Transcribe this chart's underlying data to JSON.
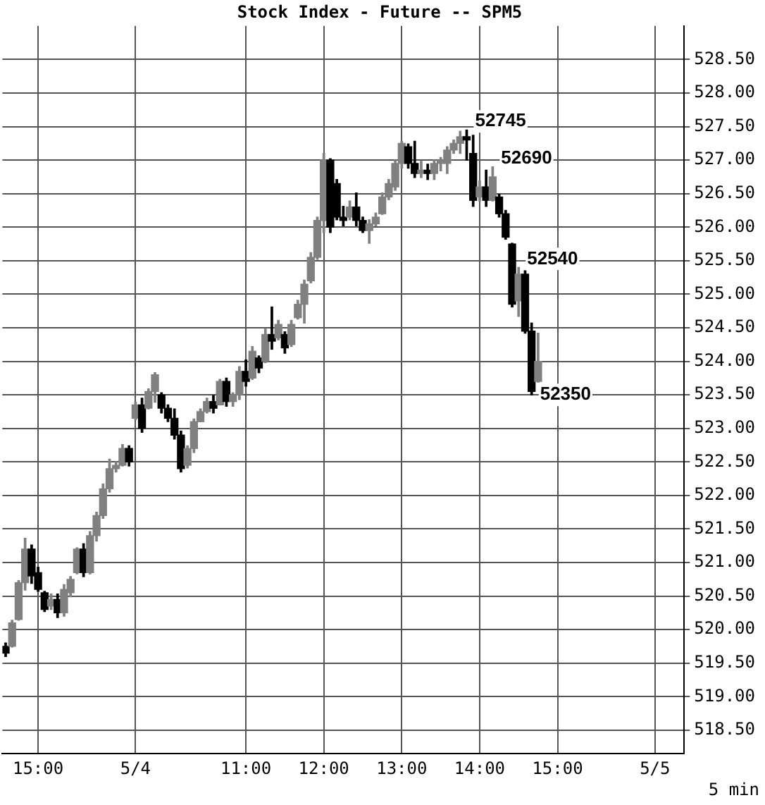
{
  "chart_data": {
    "type": "candlestick",
    "title": "Stock Index - Future -- SPM5",
    "categories": [
      null,
      null,
      null,
      null,
      null,
      "15:00",
      null,
      null,
      null,
      null,
      null,
      null,
      null,
      null,
      null,
      null,
      null,
      null,
      null,
      null,
      "5/4",
      null,
      null,
      null,
      null,
      null,
      null,
      null,
      null,
      null,
      null,
      null,
      null,
      null,
      null,
      null,
      null,
      "11:00",
      null,
      null,
      null,
      null,
      null,
      null,
      null,
      null,
      null,
      null,
      null,
      "12:00",
      null,
      null,
      null,
      null,
      null,
      null,
      null,
      null,
      null,
      null,
      null,
      "13:00",
      null,
      null,
      null,
      null,
      null,
      null,
      null,
      null,
      null,
      null,
      null,
      "14:00",
      null,
      null,
      null,
      null,
      null,
      null,
      null,
      null,
      null,
      null,
      null,
      "15:00",
      null,
      null,
      null,
      null,
      null,
      null,
      null,
      null,
      null,
      null,
      null,
      null,
      null,
      null,
      "5/5",
      null,
      null,
      null,
      null
    ],
    "ohlc": [
      [
        519.75,
        519.8,
        519.6,
        519.65
      ],
      [
        519.75,
        520.14,
        519.74,
        520.1
      ],
      [
        520.15,
        520.73,
        520.14,
        520.7
      ],
      [
        520.7,
        521.36,
        520.59,
        521.2
      ],
      [
        521.2,
        521.26,
        520.69,
        520.8
      ],
      [
        520.85,
        520.93,
        520.57,
        520.6
      ],
      [
        520.55,
        520.57,
        520.27,
        520.3
      ],
      [
        520.35,
        520.53,
        520.3,
        520.45
      ],
      [
        520.45,
        520.53,
        520.18,
        520.25
      ],
      [
        520.25,
        520.67,
        520.2,
        520.6
      ],
      [
        520.55,
        520.79,
        520.49,
        520.75
      ],
      [
        520.85,
        521.22,
        520.83,
        521.2
      ],
      [
        521.2,
        521.28,
        520.79,
        520.85
      ],
      [
        520.85,
        521.46,
        520.83,
        521.4
      ],
      [
        521.4,
        521.75,
        521.32,
        521.7
      ],
      [
        521.7,
        522.17,
        521.66,
        522.1
      ],
      [
        522.1,
        522.54,
        522.05,
        522.4
      ],
      [
        522.4,
        522.5,
        522.35,
        522.45
      ],
      [
        522.45,
        522.76,
        522.44,
        522.7
      ],
      [
        522.7,
        522.74,
        522.44,
        522.5
      ],
      [
        523.15,
        523.39,
        523.13,
        523.35
      ],
      [
        523.35,
        523.45,
        522.94,
        523.0
      ],
      [
        523.3,
        523.59,
        523.29,
        523.55
      ],
      [
        523.55,
        523.83,
        523.39,
        523.8
      ],
      [
        523.5,
        523.53,
        523.23,
        523.3
      ],
      [
        523.3,
        523.35,
        523.1,
        523.15
      ],
      [
        523.15,
        523.29,
        522.84,
        522.9
      ],
      [
        522.9,
        522.96,
        522.35,
        522.4
      ],
      [
        522.45,
        522.74,
        522.41,
        522.7
      ],
      [
        522.7,
        523.14,
        522.64,
        523.1
      ],
      [
        523.1,
        523.29,
        523.1,
        523.25
      ],
      [
        523.25,
        523.45,
        523.23,
        523.4
      ],
      [
        523.4,
        523.49,
        523.23,
        523.3
      ],
      [
        523.35,
        523.73,
        523.35,
        523.7
      ],
      [
        523.7,
        523.75,
        523.33,
        523.4
      ],
      [
        523.4,
        523.53,
        523.33,
        523.5
      ],
      [
        523.5,
        523.92,
        523.43,
        523.85
      ],
      [
        523.85,
        524.02,
        523.63,
        523.7
      ],
      [
        523.75,
        524.22,
        523.73,
        524.15
      ],
      [
        524.05,
        524.08,
        523.83,
        523.9
      ],
      [
        524.0,
        524.48,
        523.98,
        524.4
      ],
      [
        524.4,
        524.81,
        524.18,
        524.3
      ],
      [
        524.35,
        524.61,
        524.32,
        524.55
      ],
      [
        524.4,
        524.44,
        524.12,
        524.2
      ],
      [
        524.25,
        524.61,
        524.22,
        524.55
      ],
      [
        524.65,
        524.91,
        524.63,
        524.85
      ],
      [
        524.85,
        525.21,
        524.57,
        525.15
      ],
      [
        525.2,
        525.62,
        525.17,
        525.55
      ],
      [
        525.55,
        526.15,
        525.52,
        526.1
      ],
      [
        526.1,
        527.1,
        525.92,
        527.0
      ],
      [
        527.0,
        527.02,
        525.92,
        526.0
      ],
      [
        526.65,
        526.71,
        526.11,
        526.15
      ],
      [
        526.15,
        526.31,
        526.02,
        526.1
      ],
      [
        526.15,
        526.39,
        526.11,
        526.3
      ],
      [
        526.3,
        526.51,
        526.02,
        526.1
      ],
      [
        526.1,
        526.15,
        525.92,
        525.95
      ],
      [
        525.95,
        526.11,
        525.76,
        526.05
      ],
      [
        526.05,
        526.21,
        526.02,
        526.15
      ],
      [
        526.2,
        526.51,
        526.19,
        526.45
      ],
      [
        526.45,
        526.71,
        526.41,
        526.65
      ],
      [
        526.6,
        527.0,
        526.55,
        526.95
      ],
      [
        526.95,
        527.28,
        526.88,
        527.25
      ],
      [
        527.2,
        527.24,
        526.88,
        526.95
      ],
      [
        526.95,
        527.28,
        526.74,
        526.8
      ],
      [
        526.8,
        526.98,
        526.74,
        526.85
      ],
      [
        526.85,
        526.94,
        526.71,
        526.8
      ],
      [
        526.8,
        527.0,
        526.71,
        526.95
      ],
      [
        526.95,
        527.04,
        526.84,
        527.0
      ],
      [
        526.95,
        527.2,
        526.8,
        527.15
      ],
      [
        527.15,
        527.3,
        527.1,
        527.25
      ],
      [
        527.25,
        527.43,
        527.1,
        527.35
      ],
      [
        527.35,
        527.45,
        527.0,
        527.3
      ],
      [
        527.1,
        527.37,
        526.31,
        526.4
      ],
      [
        526.45,
        526.69,
        526.39,
        526.6
      ],
      [
        526.6,
        526.85,
        526.31,
        526.4
      ],
      [
        526.4,
        526.9,
        526.39,
        526.75
      ],
      [
        526.45,
        526.49,
        526.15,
        526.2
      ],
      [
        526.2,
        526.25,
        525.82,
        525.85
      ],
      [
        525.75,
        525.76,
        524.81,
        524.85
      ],
      [
        524.9,
        525.4,
        524.67,
        525.3
      ],
      [
        525.3,
        525.35,
        524.42,
        524.45
      ],
      [
        524.45,
        524.57,
        523.5,
        523.55
      ],
      [
        523.7,
        524.42,
        523.69,
        524.0
      ],
      null,
      null,
      null,
      null,
      null,
      null,
      null,
      null,
      null,
      null,
      null,
      null,
      null,
      null,
      null,
      null,
      null,
      null,
      null,
      null,
      null,
      null
    ],
    "colors": [
      "#000000",
      "#808080",
      "#808080",
      "#808080",
      "#000000",
      "#000000",
      "#000000",
      "#808080",
      "#000000",
      "#808080",
      "#808080",
      "#808080",
      "#000000",
      "#808080",
      "#808080",
      "#808080",
      "#808080",
      "#808080",
      "#808080",
      "#000000",
      "#808080",
      "#000000",
      "#808080",
      "#808080",
      "#000000",
      "#000000",
      "#000000",
      "#000000",
      "#808080",
      "#808080",
      "#808080",
      "#808080",
      "#000000",
      "#808080",
      "#000000",
      "#808080",
      "#808080",
      "#000000",
      "#808080",
      "#000000",
      "#808080",
      "#000000",
      "#808080",
      "#000000",
      "#808080",
      "#808080",
      "#808080",
      "#808080",
      "#808080",
      "#808080",
      "#000000",
      "#000000",
      "#000000",
      "#808080",
      "#000000",
      "#000000",
      "#808080",
      "#808080",
      "#808080",
      "#808080",
      "#808080",
      "#808080",
      "#000000",
      "#000000",
      "#808080",
      "#000000",
      "#808080",
      "#808080",
      "#808080",
      "#808080",
      "#808080",
      "#000000",
      "#000000",
      "#808080",
      "#000000",
      "#808080",
      "#000000",
      "#000000",
      "#000000",
      "#808080",
      "#000000",
      "#000000",
      "#808080",
      null,
      null,
      null,
      null,
      null,
      null,
      null,
      null,
      null,
      null,
      null,
      null,
      null,
      null,
      null,
      null,
      null,
      null,
      null,
      null,
      null,
      null
    ],
    "ylim": [
      518.15,
      529.0
    ],
    "yticks": [
      {
        "value": 518.5,
        "label": "518.50"
      },
      {
        "value": 519,
        "label": "519.00"
      },
      {
        "value": 519.5,
        "label": "519.50"
      },
      {
        "value": 520,
        "label": "520.00"
      },
      {
        "value": 520.5,
        "label": "520.50"
      },
      {
        "value": 521,
        "label": "521.00"
      },
      {
        "value": 521.5,
        "label": "521.50"
      },
      {
        "value": 522,
        "label": "522.00"
      },
      {
        "value": 522.5,
        "label": "522.50"
      },
      {
        "value": 523,
        "label": "523.00"
      },
      {
        "value": 523.5,
        "label": "523.50"
      },
      {
        "value": 524,
        "label": "524.00"
      },
      {
        "value": 524.5,
        "label": "524.50"
      },
      {
        "value": 525,
        "label": "525.00"
      },
      {
        "value": 525.5,
        "label": "525.50"
      },
      {
        "value": 526,
        "label": "526.00"
      },
      {
        "value": 526.5,
        "label": "526.50"
      },
      {
        "value": 527,
        "label": "527.00"
      },
      {
        "value": 527.5,
        "label": "527.50"
      },
      {
        "value": 528,
        "label": "528.00"
      },
      {
        "value": 528.5,
        "label": "528.50"
      }
    ],
    "grid": true,
    "value_labels": [
      null,
      null,
      null,
      null,
      null,
      null,
      null,
      null,
      null,
      null,
      null,
      null,
      null,
      null,
      null,
      null,
      null,
      null,
      null,
      null,
      null,
      null,
      null,
      null,
      null,
      null,
      null,
      null,
      null,
      null,
      null,
      null,
      null,
      null,
      null,
      null,
      null,
      null,
      null,
      null,
      null,
      null,
      null,
      null,
      null,
      null,
      null,
      null,
      null,
      null,
      null,
      null,
      null,
      null,
      null,
      null,
      null,
      null,
      null,
      null,
      null,
      null,
      null,
      null,
      null,
      null,
      null,
      null,
      null,
      null,
      null,
      "52745",
      null,
      null,
      null,
      "52690",
      null,
      null,
      null,
      "52540",
      null,
      "52350",
      null,
      null,
      null,
      null,
      null,
      null,
      null,
      null,
      null,
      null,
      null,
      null,
      null,
      null,
      null,
      null,
      null,
      null,
      null,
      null,
      null,
      null,
      null
    ],
    "annotations": [
      "5 min"
    ]
  }
}
